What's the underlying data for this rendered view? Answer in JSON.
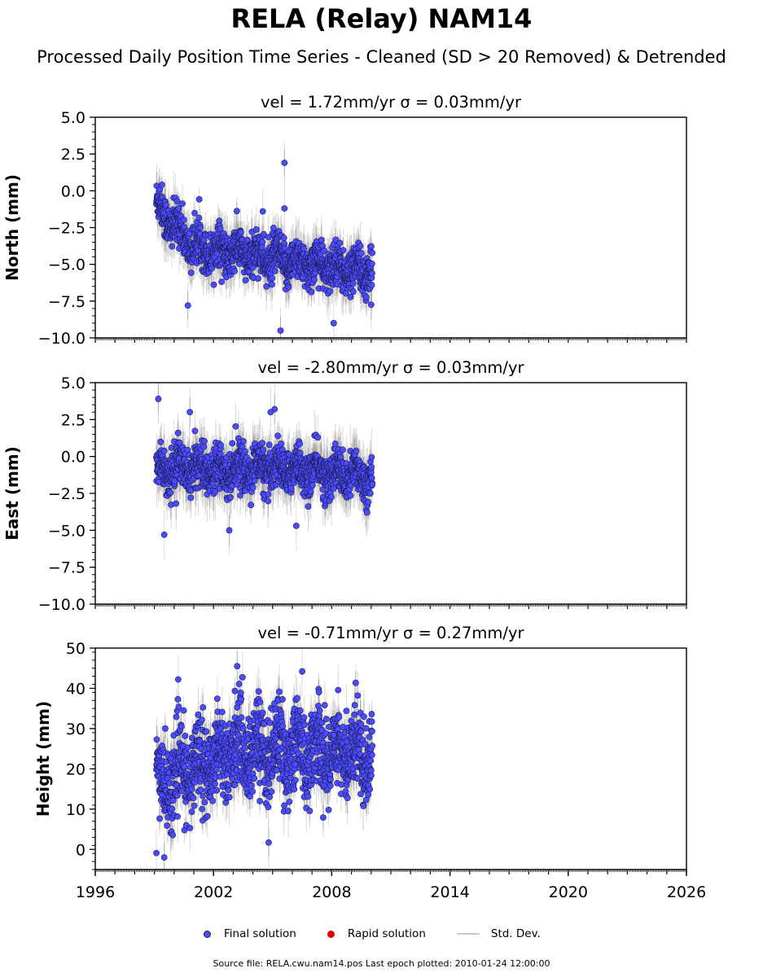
{
  "title": "RELA (Relay) NAM14",
  "subtitle": "Processed Daily Position Time Series - Cleaned (SD > 20 Removed) & Detrended",
  "legend": {
    "final": "Final solution",
    "rapid": "Rapid solution",
    "std": "Std. Dev."
  },
  "source": "Source file: RELA.cwu.nam14.pos  Last epoch plotted: 2010-01-24 12:00:00",
  "colors": {
    "final": "#4b4bff",
    "rapid": "#e00000",
    "std": "#cccccc",
    "marker_edge": "#1a1a4a"
  },
  "chart_data": [
    {
      "type": "scatter",
      "title": "vel = 1.72mm/yr   σ = 0.03mm/yr",
      "ylabel": "North (mm)",
      "xlim": [
        1996,
        2026
      ],
      "ylim": [
        -10,
        5
      ],
      "yticks": [
        "5.0",
        "2.5",
        "0.0",
        "−2.5",
        "−5.0",
        "−7.5",
        "−10.0"
      ],
      "ytick_values": [
        5,
        2.5,
        0,
        -2.5,
        -5,
        -7.5,
        -10
      ],
      "data_range": [
        1999.1,
        2010.06
      ],
      "trend": [
        [
          1999.1,
          -1.0
        ],
        [
          2001.0,
          -3.8
        ],
        [
          2010.06,
          -5.6
        ]
      ],
      "scatter": 0.9,
      "errorbar": 1.3,
      "outliers": [
        [
          2005.6,
          1.9
        ],
        [
          2005.6,
          -1.2
        ],
        [
          2005.4,
          -9.5
        ],
        [
          2004.5,
          -1.4
        ],
        [
          2000.7,
          -7.8
        ],
        [
          2008.1,
          -9.0
        ]
      ]
    },
    {
      "type": "scatter",
      "title": "vel = -2.80mm/yr   σ = 0.03mm/yr",
      "ylabel": "East (mm)",
      "xlim": [
        1996,
        2026
      ],
      "ylim": [
        -10,
        5
      ],
      "yticks": [
        "5.0",
        "2.5",
        "0.0",
        "−2.5",
        "−5.0",
        "−7.5",
        "−10.0"
      ],
      "ytick_values": [
        5,
        2.5,
        0,
        -2.5,
        -5,
        -7.5,
        -10
      ],
      "data_range": [
        1999.1,
        2010.06
      ],
      "trend": [
        [
          1999.1,
          -0.8
        ],
        [
          2005.5,
          -0.8
        ],
        [
          2010.06,
          -1.4
        ]
      ],
      "scatter": 0.9,
      "errorbar": 1.4,
      "outliers": [
        [
          1999.2,
          3.9
        ],
        [
          1999.5,
          -5.3
        ],
        [
          2005.1,
          3.2
        ],
        [
          2004.9,
          3.0
        ],
        [
          2002.8,
          -5.0
        ],
        [
          2006.2,
          -4.7
        ],
        [
          2000.8,
          3.0
        ]
      ]
    },
    {
      "type": "scatter",
      "title": "vel = -0.71mm/yr   σ = 0.27mm/yr",
      "ylabel": "Height (mm)",
      "xlim": [
        1996,
        2026
      ],
      "ylim": [
        -5,
        50
      ],
      "yticks": [
        "50",
        "40",
        "30",
        "20",
        "10",
        "0"
      ],
      "ytick_values": [
        50,
        40,
        30,
        20,
        10,
        0
      ],
      "xticks": [
        "1996",
        "2002",
        "2008",
        "2014",
        "2020",
        "2026"
      ],
      "xtick_values": [
        1996,
        2002,
        2008,
        2014,
        2020,
        2026
      ],
      "data_range": [
        1999.1,
        2010.06
      ],
      "trend": [
        [
          1999.1,
          16
        ],
        [
          2003.0,
          25
        ],
        [
          2010.06,
          24
        ]
      ],
      "scatter": 6.5,
      "errorbar": 5.0,
      "outliers": [
        [
          2003.2,
          45.5
        ],
        [
          2006.5,
          44.2
        ],
        [
          1999.5,
          -2.0
        ],
        [
          1999.1,
          -0.9
        ],
        [
          2004.8,
          1.7
        ]
      ]
    }
  ]
}
